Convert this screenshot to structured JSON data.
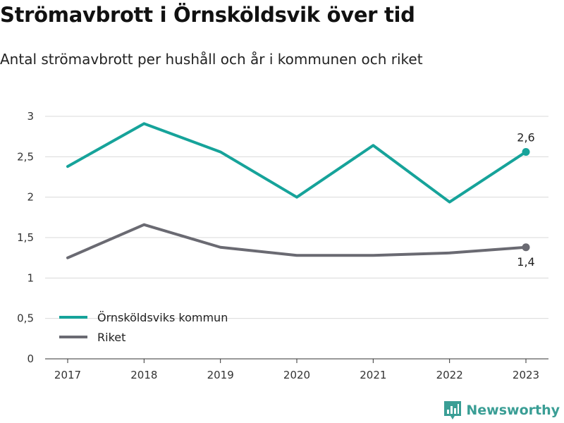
{
  "header": {
    "title": "Strömavbrott i Örnsköldsvik över tid",
    "subtitle": "Antal strömavbrott per hushåll och år i kommunen och riket"
  },
  "brand": {
    "name": "Newsworthy",
    "icon": "newsworthy-logo-icon"
  },
  "colors": {
    "kommun": "#16a39a",
    "riket": "#6a6a72",
    "grid": "#d9d9d9",
    "axis": "#333333",
    "brand": "#3a9e95"
  },
  "chart_data": {
    "type": "line",
    "title": "",
    "xlabel": "",
    "ylabel": "",
    "x": [
      "2017",
      "2018",
      "2019",
      "2020",
      "2021",
      "2022",
      "2023"
    ],
    "ylim": [
      0,
      3
    ],
    "yticks": [
      0,
      0.5,
      1,
      1.5,
      2,
      2.5,
      3
    ],
    "ytick_labels": [
      "0",
      "0,5",
      "1",
      "1,5",
      "2",
      "2,5",
      "3"
    ],
    "grid": true,
    "legend_position": "bottom-left",
    "series": [
      {
        "name": "Örnsköldsviks kommun",
        "values": [
          2.38,
          2.91,
          2.56,
          2.0,
          2.64,
          1.94,
          2.56
        ],
        "end_label": "2,6"
      },
      {
        "name": "Riket",
        "values": [
          1.25,
          1.66,
          1.38,
          1.28,
          1.28,
          1.31,
          1.38
        ],
        "end_label": "1,4"
      }
    ]
  }
}
